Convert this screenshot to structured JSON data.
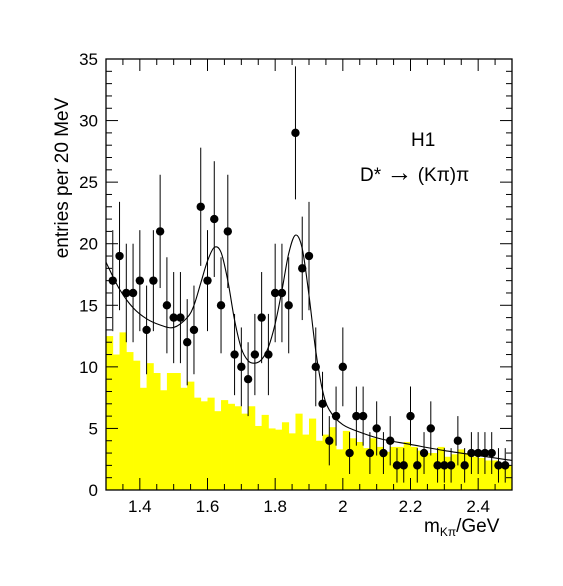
{
  "chart_data": {
    "type": "scatter",
    "title": "",
    "annotation": "H1",
    "process_label": {
      "particle": "D*",
      "arrow": "→",
      "products": "(Kπ)π"
    },
    "xlabel": {
      "main": "m",
      "subscript": "Kπ",
      "unit": "/GeV"
    },
    "ylabel": "entries per 20 MeV",
    "xlim": [
      1.3,
      2.5
    ],
    "ylim": [
      0,
      35
    ],
    "x_ticks": [
      1.4,
      1.6,
      1.8,
      2.0,
      2.2,
      2.4
    ],
    "x_tick_labels": [
      "1.4",
      "1.6",
      "1.8",
      "2",
      "2.2",
      "2.4"
    ],
    "y_ticks": [
      0,
      5,
      10,
      15,
      20,
      25,
      30,
      35
    ],
    "y_tick_labels": [
      "0",
      "5",
      "10",
      "15",
      "20",
      "25",
      "30",
      "35"
    ],
    "grid": false,
    "colors": {
      "histogram_fill": "#ffff00",
      "points": "#000000",
      "fit": "#000000"
    },
    "background_histogram": {
      "bin_width": 0.02,
      "x_start": 1.3,
      "values": [
        12.5,
        11,
        12.8,
        11.2,
        10.5,
        8.3,
        10.3,
        9.5,
        8.1,
        9.5,
        9.5,
        8.3,
        8.8,
        7.5,
        7.2,
        7.5,
        6.4,
        7.3,
        7,
        6.8,
        6.2,
        6.8,
        5.2,
        6.1,
        5,
        4.9,
        5.5,
        4.6,
        6.2,
        4.5,
        5.8,
        4,
        4.5,
        5.1,
        3.3,
        4.8,
        4.2,
        3.9,
        3.4,
        4.2,
        3.5,
        3.1,
        3.5,
        3.5,
        3.9,
        3.5,
        3.2,
        3,
        3,
        3.5,
        2.7,
        2.9,
        3.3,
        3,
        2.7,
        2.6,
        2.4,
        2.4,
        2.2,
        2
      ]
    },
    "series": [
      {
        "type": "scatter",
        "x": [
          1.32,
          1.34,
          1.36,
          1.38,
          1.4,
          1.42,
          1.44,
          1.46,
          1.48,
          1.5,
          1.52,
          1.54,
          1.56,
          1.58,
          1.6,
          1.62,
          1.64,
          1.66,
          1.68,
          1.7,
          1.72,
          1.74,
          1.76,
          1.78,
          1.8,
          1.82,
          1.84,
          1.86,
          1.88,
          1.9,
          1.92,
          1.94,
          1.96,
          1.98,
          2.0,
          2.02,
          2.04,
          2.06,
          2.08,
          2.1,
          2.12,
          2.14,
          2.16,
          2.18,
          2.2,
          2.22,
          2.24,
          2.26,
          2.28,
          2.3,
          2.32,
          2.34,
          2.36,
          2.38,
          2.4,
          2.42,
          2.44,
          2.46,
          2.48
        ],
        "y": [
          17,
          19,
          16,
          16,
          17,
          13,
          17,
          21,
          15,
          14,
          14,
          12,
          13,
          23,
          17,
          22,
          15,
          21,
          11,
          10,
          9,
          11,
          14,
          11,
          16,
          16,
          15,
          29,
          18,
          19,
          10,
          7,
          4,
          6,
          10,
          3,
          6,
          6,
          3,
          5,
          3,
          4,
          2,
          2,
          6,
          2,
          3,
          5,
          2,
          2,
          2,
          4,
          2,
          3,
          3,
          3,
          3,
          2,
          2
        ],
        "yerr": [
          4.1,
          4.4,
          4,
          4,
          4.1,
          3.6,
          4.1,
          4.6,
          3.9,
          3.7,
          3.7,
          3.5,
          3.6,
          4.8,
          4.1,
          4.7,
          3.9,
          4.6,
          3.3,
          3.2,
          3,
          3.3,
          3.7,
          3.3,
          4,
          4,
          3.9,
          5.4,
          4.2,
          4.4,
          3.2,
          2.6,
          2,
          2.4,
          3.2,
          1.7,
          2.4,
          2.4,
          1.7,
          2.2,
          1.7,
          2,
          1.4,
          1.4,
          2.4,
          1.4,
          1.7,
          2.2,
          1.4,
          1.4,
          1.4,
          2,
          1.4,
          1.7,
          1.7,
          1.7,
          1.7,
          1.4,
          1.4
        ]
      },
      {
        "type": "line",
        "x": [
          1.3,
          1.34,
          1.38,
          1.42,
          1.46,
          1.5,
          1.54,
          1.56,
          1.58,
          1.6,
          1.62,
          1.64,
          1.66,
          1.68,
          1.7,
          1.72,
          1.74,
          1.76,
          1.78,
          1.8,
          1.82,
          1.84,
          1.86,
          1.88,
          1.9,
          1.92,
          1.94,
          1.96,
          2.0,
          2.06,
          2.12,
          2.2,
          2.3,
          2.4,
          2.5
        ],
        "y": [
          18.5,
          16.3,
          14.8,
          13.9,
          13.4,
          13.2,
          14,
          15,
          16.8,
          18.6,
          19.7,
          19.3,
          17,
          13.8,
          11.5,
          10.5,
          10.3,
          10.6,
          11.6,
          13.5,
          16.2,
          19.2,
          20.7,
          19.6,
          15.8,
          11.3,
          8.1,
          6.5,
          5.3,
          4.6,
          4.1,
          3.7,
          3.2,
          2.8,
          2.4
        ]
      }
    ]
  }
}
